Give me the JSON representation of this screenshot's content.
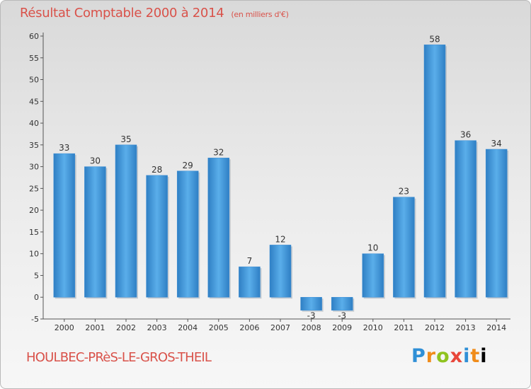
{
  "chart_data": {
    "type": "bar",
    "title": "Résultat Comptable 2000 à 2014",
    "unit_note": "(en milliers d'€)",
    "categories": [
      "2000",
      "2001",
      "2002",
      "2003",
      "2004",
      "2005",
      "2006",
      "2007",
      "2008",
      "2009",
      "2010",
      "2011",
      "2012",
      "2013",
      "2014"
    ],
    "values": [
      33,
      30,
      35,
      28,
      29,
      32,
      7,
      12,
      -3,
      -3,
      10,
      23,
      58,
      36,
      34
    ],
    "ylim": [
      -5,
      60
    ],
    "yticks": [
      -5,
      0,
      5,
      10,
      15,
      20,
      25,
      30,
      35,
      40,
      45,
      50,
      55,
      60
    ],
    "grid": false,
    "bar_color": "#3d8fd6"
  },
  "footer": {
    "commune": "HOULBEC-PRèS-LE-GROS-THEIL",
    "logo_letters": [
      "P",
      "r",
      "o",
      "x",
      "i",
      "t",
      "i"
    ]
  }
}
